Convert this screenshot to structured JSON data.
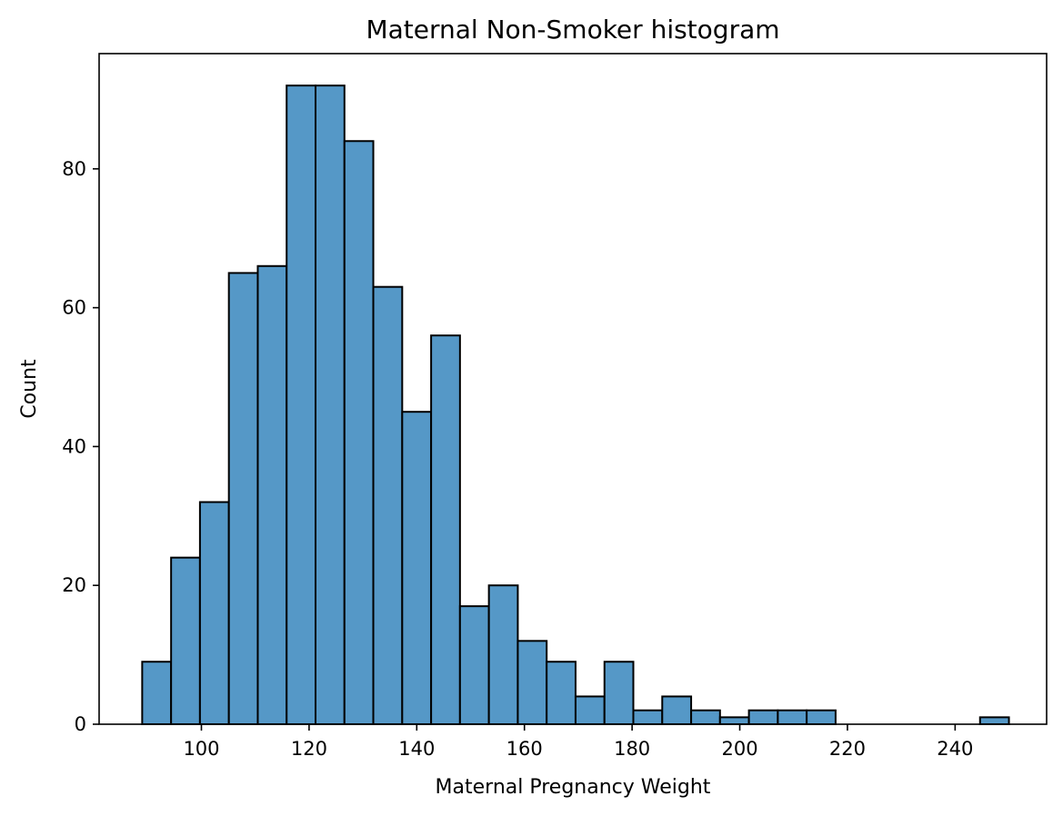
{
  "chart_data": {
    "type": "bar",
    "title": "Maternal Non-Smoker histogram",
    "xlabel": "Maternal Pregnancy Weight",
    "ylabel": "Count",
    "xlim": [
      81,
      257
    ],
    "ylim": [
      0,
      96.6
    ],
    "x_ticks": [
      100,
      120,
      140,
      160,
      180,
      200,
      220,
      240
    ],
    "y_ticks": [
      0,
      20,
      40,
      60,
      80
    ],
    "bins": [
      {
        "x0": 89.0,
        "x1": 94.37,
        "count": 9
      },
      {
        "x0": 94.37,
        "x1": 99.73,
        "count": 24
      },
      {
        "x0": 99.73,
        "x1": 105.1,
        "count": 32
      },
      {
        "x0": 105.1,
        "x1": 110.47,
        "count": 65
      },
      {
        "x0": 110.47,
        "x1": 115.83,
        "count": 66
      },
      {
        "x0": 115.83,
        "x1": 121.2,
        "count": 92
      },
      {
        "x0": 121.2,
        "x1": 126.57,
        "count": 92
      },
      {
        "x0": 126.57,
        "x1": 131.93,
        "count": 84
      },
      {
        "x0": 131.93,
        "x1": 137.3,
        "count": 63
      },
      {
        "x0": 137.3,
        "x1": 142.67,
        "count": 45
      },
      {
        "x0": 142.67,
        "x1": 148.03,
        "count": 56
      },
      {
        "x0": 148.03,
        "x1": 153.4,
        "count": 17
      },
      {
        "x0": 153.4,
        "x1": 158.77,
        "count": 20
      },
      {
        "x0": 158.77,
        "x1": 164.13,
        "count": 12
      },
      {
        "x0": 164.13,
        "x1": 169.5,
        "count": 9
      },
      {
        "x0": 169.5,
        "x1": 174.87,
        "count": 4
      },
      {
        "x0": 174.87,
        "x1": 180.23,
        "count": 9
      },
      {
        "x0": 180.23,
        "x1": 185.6,
        "count": 2
      },
      {
        "x0": 185.6,
        "x1": 190.97,
        "count": 4
      },
      {
        "x0": 190.97,
        "x1": 196.33,
        "count": 2
      },
      {
        "x0": 196.33,
        "x1": 201.7,
        "count": 1
      },
      {
        "x0": 201.7,
        "x1": 207.07,
        "count": 2
      },
      {
        "x0": 207.07,
        "x1": 212.43,
        "count": 2
      },
      {
        "x0": 212.43,
        "x1": 217.8,
        "count": 2
      },
      {
        "x0": 217.8,
        "x1": 223.17,
        "count": 0
      },
      {
        "x0": 223.17,
        "x1": 228.53,
        "count": 0
      },
      {
        "x0": 228.53,
        "x1": 233.9,
        "count": 0
      },
      {
        "x0": 233.9,
        "x1": 239.27,
        "count": 0
      },
      {
        "x0": 239.27,
        "x1": 244.63,
        "count": 0
      },
      {
        "x0": 244.63,
        "x1": 250.0,
        "count": 1
      }
    ],
    "grid": false,
    "legend": "none",
    "bar_color": "#5598c7",
    "edge_color": "#000000"
  }
}
